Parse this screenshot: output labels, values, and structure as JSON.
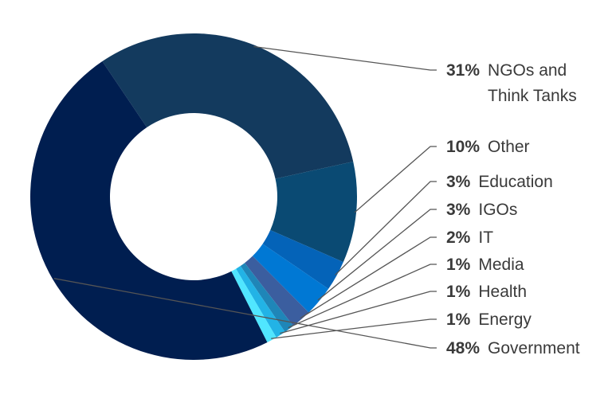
{
  "chart_data": {
    "type": "pie",
    "donut": true,
    "title": "",
    "slices": [
      {
        "pct_label": "31%",
        "label": "NGOs and",
        "label2": "Think Tanks",
        "value": 31,
        "color": "#133a5e"
      },
      {
        "pct_label": "10%",
        "label": "Other",
        "label2": "",
        "value": 10,
        "color": "#0a4a73"
      },
      {
        "pct_label": "3%",
        "label": "Education",
        "label2": "",
        "value": 3,
        "color": "#0463b8"
      },
      {
        "pct_label": "3%",
        "label": "IGOs",
        "label2": "",
        "value": 3,
        "color": "#0078d4"
      },
      {
        "pct_label": "2%",
        "label": "IT",
        "label2": "",
        "value": 2,
        "color": "#3b5e9f"
      },
      {
        "pct_label": "1%",
        "label": "Media",
        "label2": "",
        "value": 1,
        "color": "#1f86b8"
      },
      {
        "pct_label": "1%",
        "label": "Health",
        "label2": "",
        "value": 1,
        "color": "#22b3e6"
      },
      {
        "pct_label": "1%",
        "label": "Energy",
        "label2": "",
        "value": 1,
        "color": "#50e6ff"
      },
      {
        "pct_label": "48%",
        "label": "Government",
        "label2": "",
        "value": 48,
        "color": "#001e50"
      }
    ],
    "leader_color": "#555555"
  }
}
